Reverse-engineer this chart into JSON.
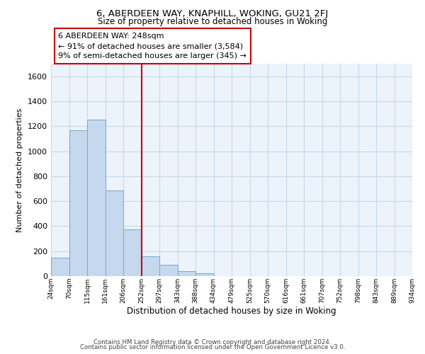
{
  "title": "6, ABERDEEN WAY, KNAPHILL, WOKING, GU21 2FJ",
  "subtitle": "Size of property relative to detached houses in Woking",
  "xlabel": "Distribution of detached houses by size in Woking",
  "ylabel": "Number of detached properties",
  "bar_color": "#c5d8ed",
  "bar_edge_color": "#6aaed6",
  "bins": [
    24,
    70,
    115,
    161,
    206,
    252,
    297,
    343,
    388,
    434,
    479,
    525,
    570,
    616,
    661,
    707,
    752,
    798,
    843,
    889,
    934
  ],
  "values": [
    148,
    1170,
    1255,
    685,
    375,
    160,
    92,
    38,
    22,
    0,
    0,
    0,
    0,
    0,
    0,
    0,
    0,
    0,
    0,
    0
  ],
  "tick_labels": [
    "24sqm",
    "70sqm",
    "115sqm",
    "161sqm",
    "206sqm",
    "252sqm",
    "297sqm",
    "343sqm",
    "388sqm",
    "434sqm",
    "479sqm",
    "525sqm",
    "570sqm",
    "616sqm",
    "661sqm",
    "707sqm",
    "752sqm",
    "798sqm",
    "843sqm",
    "889sqm",
    "934sqm"
  ],
  "property_line_x": 252,
  "property_line_color": "#cc0000",
  "annotation_text_line1": "6 ABERDEEN WAY: 248sqm",
  "annotation_text_line2": "← 91% of detached houses are smaller (3,584)",
  "annotation_text_line3": "9% of semi-detached houses are larger (345) →",
  "ylim": [
    0,
    1700
  ],
  "yticks": [
    0,
    200,
    400,
    600,
    800,
    1000,
    1200,
    1400,
    1600
  ],
  "footer_line1": "Contains HM Land Registry data © Crown copyright and database right 2024.",
  "footer_line2": "Contains public sector information licensed under the Open Government Licence v3.0.",
  "background_color": "#ffffff",
  "plot_bg_color": "#edf3fa",
  "grid_color": "#c8d8e8"
}
